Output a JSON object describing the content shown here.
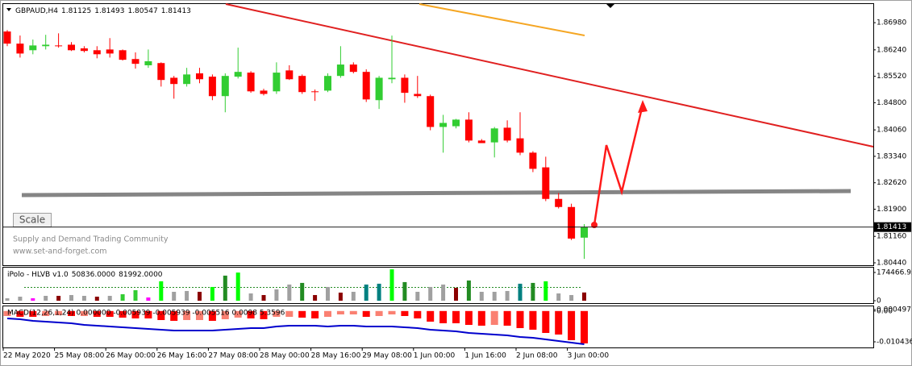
{
  "chart_data": [
    {
      "type": "candlestick",
      "title": "GBPAUD,H4",
      "categories": [
        "22 May 2020",
        null,
        null,
        null,
        "25 May 08:00",
        null,
        null,
        null,
        "26 May 00:00",
        null,
        null,
        null,
        "26 May 16:00",
        null,
        null,
        null,
        "27 May 08:00",
        null,
        null,
        null,
        "28 May 00:00",
        null,
        null,
        null,
        "28 May 16:00",
        null,
        null,
        null,
        "29 May 08:00",
        null,
        null,
        null,
        "1 Jun 00:00",
        null,
        null,
        null,
        "1 Jun 16:00",
        null,
        null,
        null,
        "2 Jun 08:00",
        null,
        null,
        null,
        "3 Jun 00:00",
        null
      ],
      "open": [
        1.8674,
        1.8641,
        1.8623,
        1.8634,
        1.8636,
        1.8638,
        1.8628,
        1.8623,
        1.8625,
        1.8623,
        1.8599,
        1.8582,
        1.8588,
        1.8548,
        1.8531,
        1.856,
        1.8551,
        1.8498,
        1.8551,
        1.8562,
        1.8513,
        1.8511,
        1.8568,
        1.8553,
        1.8511,
        1.8513,
        1.8553,
        1.8584,
        1.8564,
        1.8487,
        1.8544,
        1.8548,
        1.8504,
        1.8498,
        1.8414,
        1.8416,
        1.8434,
        1.8377,
        1.8372,
        1.8412,
        1.8383,
        1.8344,
        1.8304,
        1.8218,
        1.8196,
        1.81125
      ],
      "high": [
        1.8678,
        1.8663,
        1.8652,
        1.8665,
        1.8669,
        1.8645,
        1.8634,
        1.8634,
        1.8656,
        1.8625,
        1.8617,
        1.8625,
        1.859,
        1.8553,
        1.8575,
        1.8575,
        1.8557,
        1.856,
        1.863,
        1.8566,
        1.8518,
        1.859,
        1.8582,
        1.8557,
        1.8516,
        1.856,
        1.8634,
        1.859,
        1.8571,
        1.8553,
        1.8663,
        1.8557,
        1.8553,
        1.8502,
        1.8447,
        1.8436,
        1.8454,
        1.8381,
        1.8414,
        1.8432,
        1.8454,
        1.8348,
        1.8333,
        1.8234,
        1.8205,
        1.81493
      ],
      "low": [
        1.8634,
        1.8603,
        1.8612,
        1.8625,
        1.863,
        1.8621,
        1.8617,
        1.8601,
        1.8603,
        1.8595,
        1.8573,
        1.8575,
        1.8524,
        1.8491,
        1.8524,
        1.8533,
        1.8487,
        1.8454,
        1.8546,
        1.8507,
        1.85,
        1.8504,
        1.8542,
        1.8504,
        1.8485,
        1.8509,
        1.8548,
        1.856,
        1.8482,
        1.8463,
        1.8533,
        1.848,
        1.8493,
        1.8405,
        1.8344,
        1.841,
        1.8372,
        1.837,
        1.8331,
        1.8372,
        1.8337,
        1.8291,
        1.8212,
        1.8192,
        1.8106,
        1.80547
      ],
      "close": [
        1.8641,
        1.8614,
        1.8636,
        1.8638,
        1.8634,
        1.8623,
        1.8621,
        1.8612,
        1.8614,
        1.8597,
        1.8586,
        1.8593,
        1.8542,
        1.8531,
        1.8557,
        1.8544,
        1.8498,
        1.8553,
        1.8564,
        1.8511,
        1.8504,
        1.8562,
        1.8544,
        1.8509,
        1.8509,
        1.8553,
        1.8584,
        1.8564,
        1.8489,
        1.8548,
        1.8548,
        1.8507,
        1.8498,
        1.8414,
        1.8425,
        1.8434,
        1.8377,
        1.837,
        1.841,
        1.8377,
        1.8344,
        1.83,
        1.8218,
        1.8196,
        1.811,
        1.81413
      ],
      "up_color": "#32cd32",
      "down_color": "#ff0000",
      "ylim": [
        1.80374,
        1.8751
      ],
      "yticks": [
        {
          "value": 1.8698,
          "label": "1.86980"
        },
        {
          "value": 1.8624,
          "label": "1.86240"
        },
        {
          "value": 1.8552,
          "label": "1.85520"
        },
        {
          "value": 1.848,
          "label": "1.84800"
        },
        {
          "value": 1.8406,
          "label": "1.84060"
        },
        {
          "value": 1.8334,
          "label": "1.83340"
        },
        {
          "value": 1.8262,
          "label": "1.82620"
        },
        {
          "value": 1.819,
          "label": "1.81900"
        },
        {
          "value": 1.8116,
          "label": "1.81160"
        },
        {
          "value": 1.8044,
          "label": "1.80440"
        }
      ],
      "annotations": [
        "Supply and Demand Trading Community",
        "www.set-and-forget.com"
      ],
      "button": "Scale"
    },
    {
      "type": "bar",
      "title": "iPolo - HLVB v1.0",
      "legend_values": [
        {
          "value": 50836,
          "label": "50836.0000"
        },
        {
          "value": 81992,
          "label": "81992.0000"
        }
      ],
      "values": [
        15000,
        25000,
        15000,
        30000,
        30000,
        35000,
        30000,
        25000,
        30000,
        40000,
        65000,
        20000,
        120000,
        55000,
        60000,
        55000,
        85000,
        155000,
        174000,
        45000,
        35000,
        70000,
        100000,
        110000,
        35000,
        85000,
        50000,
        55000,
        100000,
        105000,
        194000,
        115000,
        55000,
        85000,
        100000,
        80000,
        125000,
        55000,
        55000,
        60000,
        105000,
        110000,
        120000,
        45000,
        35000,
        50836
      ],
      "colors": [
        "#a0a0a0",
        "#a0a0a0",
        "#ff00ff",
        "#a0a0a0",
        "#8b0000",
        "#a0a0a0",
        "#a0a0a0",
        "#8b0000",
        "#a0a0a0",
        "#32cd32",
        "#32cd32",
        "#ff00ff",
        "#00ff00",
        "#a0a0a0",
        "#a0a0a0",
        "#8b0000",
        "#00ff00",
        "#228b22",
        "#00ff00",
        "#a0a0a0",
        "#8b0000",
        "#a0a0a0",
        "#a0a0a0",
        "#228b22",
        "#8b0000",
        "#a0a0a0",
        "#8b0000",
        "#a0a0a0",
        "#008080",
        "#008080",
        "#00ff00",
        "#228b22",
        "#a0a0a0",
        "#a0a0a0",
        "#a0a0a0",
        "#8b0000",
        "#228b22",
        "#a0a0a0",
        "#a0a0a0",
        "#a0a0a0",
        "#008080",
        "#228b22",
        "#00ff00",
        "#a0a0a0",
        "#a0a0a0",
        "#8b0000"
      ],
      "ylim": [
        -14954,
        209360
      ],
      "yticks": [
        174466.95,
        0
      ]
    },
    {
      "type": "macd",
      "title": "MACD(12,26,1,24) 0.000000 -0.005939 -0.005939 -0.005516 0.0098 5.3596",
      "values": [
        -0.00169,
        -0.00197,
        -0.00197,
        -0.00169,
        -0.00142,
        -0.00169,
        -0.00169,
        -0.00197,
        -0.00197,
        -0.00224,
        -0.00251,
        -0.00251,
        -0.00306,
        -0.00333,
        -0.00306,
        -0.00306,
        -0.00333,
        -0.00278,
        -0.00224,
        -0.00251,
        -0.00278,
        -0.00197,
        -0.00197,
        -0.00224,
        -0.00251,
        -0.00197,
        -0.00115,
        -0.00115,
        -0.00197,
        -0.00169,
        -0.00115,
        -0.00169,
        -0.00251,
        -0.0036,
        -0.00415,
        -0.00415,
        -0.0047,
        -0.00497,
        -0.0047,
        -0.00497,
        -0.00579,
        -0.00633,
        -0.00743,
        -0.00797,
        -0.00988,
        -0.01097
      ],
      "colors": [
        "#fa8072",
        "#ff0000",
        "#ff0000",
        "#fa8072",
        "#fa8072",
        "#ff0000",
        "#fa8072",
        "#ff0000",
        "#ff0000",
        "#ff0000",
        "#ff0000",
        "#ff0000",
        "#ff0000",
        "#ff0000",
        "#fa8072",
        "#fa8072",
        "#ff0000",
        "#fa8072",
        "#fa8072",
        "#ff0000",
        "#ff0000",
        "#fa8072",
        "#fa8072",
        "#ff0000",
        "#ff0000",
        "#fa8072",
        "#fa8072",
        "#fa8072",
        "#ff0000",
        "#fa8072",
        "#fa8072",
        "#ff0000",
        "#ff0000",
        "#ff0000",
        "#ff0000",
        "#ff0000",
        "#ff0000",
        "#ff0000",
        "#fa8072",
        "#ff0000",
        "#ff0000",
        "#ff0000",
        "#ff0000",
        "#ff0000",
        "#ff0000",
        "#ff0000"
      ],
      "line_values": [
        -0.00251,
        -0.00278,
        -0.00333,
        -0.0036,
        -0.00388,
        -0.00415,
        -0.0047,
        -0.00497,
        -0.00524,
        -0.00551,
        -0.00579,
        -0.00606,
        -0.00633,
        -0.00661,
        -0.00661,
        -0.00661,
        -0.00661,
        -0.00633,
        -0.00606,
        -0.00579,
        -0.00579,
        -0.00524,
        -0.00497,
        -0.00497,
        -0.00497,
        -0.00524,
        -0.00497,
        -0.00497,
        -0.00524,
        -0.00524,
        -0.00524,
        -0.00551,
        -0.00579,
        -0.00633,
        -0.00661,
        -0.00688,
        -0.00743,
        -0.0077,
        -0.00797,
        -0.00824,
        -0.00879,
        -0.00906,
        -0.00961,
        -0.01016,
        -0.0107,
        -0.01125
      ],
      "line_color": "#0000cd",
      "ylim": [
        -0.01235,
        0.00186
      ],
      "yticks": [
        {
          "value": 0,
          "label": "0.00"
        },
        0.000497,
        -0.010436
      ]
    }
  ]
}
